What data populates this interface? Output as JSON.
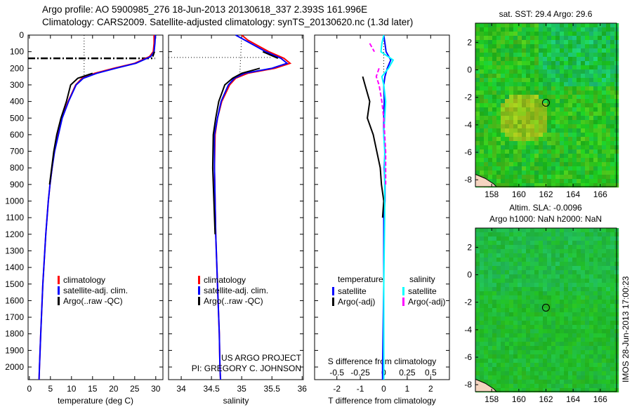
{
  "title_line1": "Argo profile: AO 5900985_276 18-Jun-2013 20130618_337 2.393S 161.996E",
  "title_line2": "Climatology: CARS2009. Satellite-adjusted climatology: synTS_20130620.nc (1.3d later)",
  "credit1": "US ARGO PROJECT",
  "credit2": "PI: GREGORY C. JOHNSON",
  "side_label": "IMOS 28-Jun-2013 17:00:23",
  "colors": {
    "clim": "#ff0000",
    "sat": "#0000ff",
    "argo": "#000000",
    "sal_sat": "#00ffff",
    "sal_argo": "#ff00ff",
    "map_green": "#22cc22"
  },
  "chart_data": [
    {
      "type": "line",
      "name": "temperature",
      "xlabel": "temperature (deg C)",
      "xlim": [
        -0.3,
        31.7
      ],
      "ylim": [
        2076,
        0
      ],
      "xticks": [
        0,
        5,
        10,
        15,
        20,
        25,
        30
      ],
      "yticks": [
        0,
        100,
        200,
        300,
        400,
        500,
        600,
        700,
        800,
        900,
        1000,
        1100,
        1200,
        1300,
        1400,
        1500,
        1600,
        1700,
        1800,
        1900,
        2000
      ],
      "legend": [
        "climatology",
        "satellite-adj. clim.",
        "Argo(..raw -QC)"
      ],
      "depth": [
        0,
        50,
        100,
        130,
        170,
        200,
        230,
        260,
        300,
        400,
        500,
        600,
        700,
        800,
        900,
        1000,
        1200,
        1500,
        1800,
        2000,
        2076
      ],
      "series": [
        {
          "name": "climatology",
          "values": [
            29.6,
            29.6,
            29.4,
            28.5,
            25,
            20,
            15.5,
            12.5,
            11,
            9.2,
            7.7,
            6.8,
            5.9,
            5.4,
            4.9,
            4.5,
            3.9,
            3.2,
            2.7,
            2.4,
            2.3
          ]
        },
        {
          "name": "satellite-adj. clim.",
          "values": [
            29.9,
            29.8,
            29.6,
            28.8,
            25.3,
            20.5,
            16,
            12.8,
            11.1,
            9.3,
            7.8,
            6.9,
            6,
            5.4,
            4.9,
            4.5,
            3.9,
            3.2,
            2.7,
            2.4,
            2.3
          ]
        },
        {
          "name": "Argo(..raw -QC)",
          "values": [
            null,
            null,
            29.7,
            29.3,
            null,
            null,
            15,
            11.5,
            9.8,
            8.8,
            7.5,
            6.5,
            5.8,
            5.3,
            4.8,
            null,
            null,
            null,
            null,
            null,
            null
          ]
        }
      ],
      "mld_depth": 140,
      "ref_temp": 13
    },
    {
      "type": "line",
      "name": "salinity",
      "xlabel": "salinity",
      "xlim": [
        33.79,
        36.02
      ],
      "ylim": [
        2076,
        0
      ],
      "xticks": [
        34,
        34.5,
        35,
        35.5,
        36
      ],
      "legend": [
        "climatology",
        "satellite-adj. clim.",
        "Argo(..raw -QC)"
      ],
      "depth": [
        0,
        30,
        60,
        100,
        140,
        170,
        200,
        230,
        260,
        300,
        400,
        500,
        600,
        800,
        1000,
        1200,
        1500,
        1800,
        2000,
        2076
      ],
      "series": [
        {
          "name": "climatology",
          "values": [
            35.0,
            35.1,
            35.25,
            35.45,
            35.7,
            35.8,
            35.55,
            35.1,
            34.9,
            34.8,
            34.67,
            34.6,
            34.56,
            34.55,
            34.56,
            34.57,
            34.6,
            34.63,
            34.64,
            34.65
          ]
        },
        {
          "name": "satellite-adj. clim.",
          "values": [
            34.9,
            35.05,
            35.2,
            35.4,
            35.65,
            35.75,
            35.5,
            35.05,
            34.88,
            34.78,
            34.66,
            34.6,
            34.55,
            34.55,
            34.56,
            34.57,
            34.6,
            34.63,
            34.64,
            34.65
          ]
        },
        {
          "name": "Argo(..raw -QC)",
          "values": [
            null,
            null,
            null,
            35.35,
            35.6,
            null,
            35.3,
            35,
            34.85,
            34.72,
            34.62,
            34.57,
            34.53,
            34.52,
            34.54,
            34.56,
            null,
            null,
            null,
            null
          ]
        }
      ],
      "mld_depth": 135,
      "ref_sal": 35
    },
    {
      "type": "line",
      "name": "difference",
      "xlabel": "T difference from climatology",
      "x2label": "S difference from climatology",
      "xlim": [
        -2.95,
        2.8
      ],
      "ylim": [
        2076,
        0
      ],
      "xticks": [
        -2,
        -1,
        0,
        1,
        2
      ],
      "x2ticks": [
        -0.5,
        -0.25,
        0,
        0.25,
        0.5
      ],
      "legend_headers": [
        "temperature",
        "salinity"
      ],
      "legend": [
        "satellite",
        "Argo(-adj)",
        "satellite",
        "Argo(-adj)"
      ],
      "depth": [
        0,
        50,
        100,
        150,
        200,
        250,
        300,
        400,
        500,
        600,
        700,
        800,
        900,
        1000,
        1100,
        1500,
        2000,
        2076
      ],
      "series": [
        {
          "name": "T satellite",
          "values": [
            0,
            0.05,
            0.1,
            0.3,
            0.15,
            0.05,
            0,
            0.02,
            0,
            0,
            0.05,
            0.02,
            0.05,
            0.05,
            0,
            0,
            -0.05,
            -0.05
          ]
        },
        {
          "name": "T Argo(-adj)",
          "values": [
            null,
            null,
            null,
            null,
            null,
            -0.9,
            -0.8,
            -0.6,
            -0.7,
            -0.45,
            -0.3,
            -0.15,
            -0.1,
            0,
            -0.05,
            null,
            null,
            null
          ]
        },
        {
          "name": "S satellite",
          "values": [
            0,
            -0.02,
            -0.03,
            0.1,
            0.05,
            -0.02,
            0,
            0.02,
            0.01,
            0,
            0.01,
            0.01,
            0.01,
            0.01,
            0.01,
            0,
            0,
            0
          ]
        },
        {
          "name": "S Argo(-adj)",
          "values": [
            null,
            -0.15,
            -0.1,
            null,
            -0.05,
            -0.08,
            -0.05,
            -0.02,
            0,
            0.01,
            0.02,
            0.02,
            0.02,
            null,
            null,
            null,
            null,
            null
          ]
        }
      ]
    },
    {
      "type": "heatmap",
      "name": "sst-map",
      "title": "sat. SST: 29.4 Argo: 29.6",
      "lonlim": [
        156.8,
        167.2
      ],
      "latlim": [
        -8.5,
        3.4
      ],
      "lon_ticks": [
        158,
        160,
        162,
        164,
        166
      ],
      "lat_ticks": [
        2,
        0,
        -2,
        -4,
        -6,
        -8
      ],
      "argo_position": [
        161.996,
        -2.393
      ]
    },
    {
      "type": "heatmap",
      "name": "sla-map",
      "title1": "Altim. SLA: -0.0096",
      "title2": "Argo h1000: NaN h2000: NaN",
      "lonlim": [
        156.8,
        167.2
      ],
      "latlim": [
        -8.5,
        3.4
      ],
      "lon_ticks": [
        158,
        160,
        162,
        164,
        166
      ],
      "lat_ticks": [
        2,
        0,
        -2,
        -4,
        -6,
        -8
      ],
      "argo_position": [
        161.996,
        -2.393
      ]
    }
  ]
}
